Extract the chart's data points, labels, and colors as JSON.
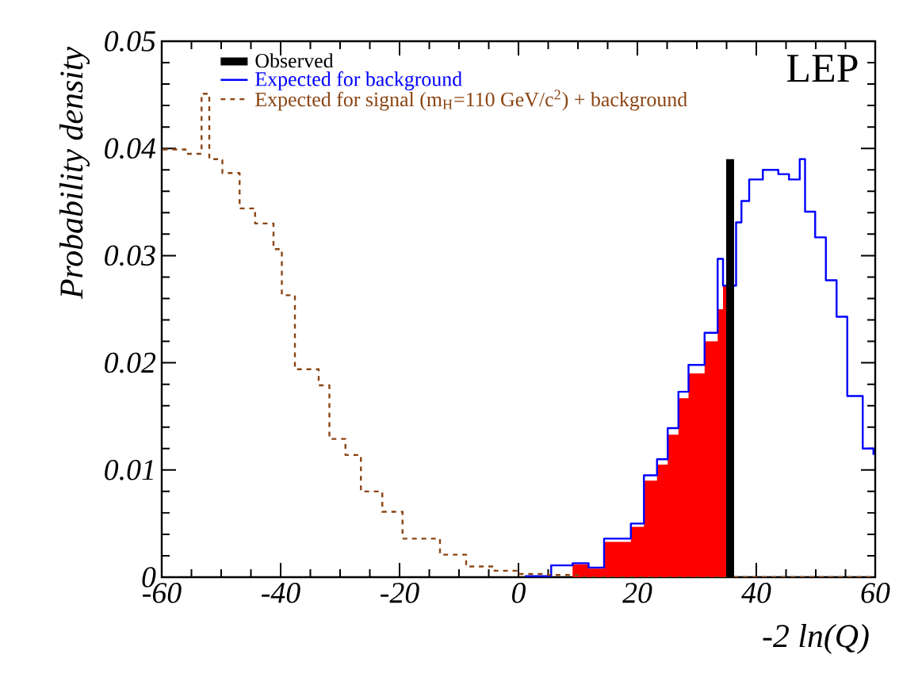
{
  "chart_data": {
    "type": "step",
    "xlabel": "-2 ln(Q)",
    "ylabel": "Probability density",
    "xlim": [
      -60,
      60
    ],
    "ylim": [
      0,
      0.05
    ],
    "xticks": [
      -60,
      -40,
      -20,
      0,
      20,
      40,
      60
    ],
    "yticks": [
      0,
      0.01,
      0.02,
      0.03,
      0.04,
      0.05
    ],
    "legend": "top left",
    "grid": false,
    "annotations": [
      "LEP"
    ],
    "series": [
      {
        "name": "Observed",
        "type": "line",
        "color": "#000000",
        "x": [
          35.6,
          35.6
        ],
        "values": [
          0,
          0.039
        ]
      },
      {
        "name": "Expected for background",
        "color": "#0000ff",
        "x": [
          1.1,
          5.5,
          9.1,
          11.8,
          14.4,
          18.9,
          21.1,
          23.3,
          25.1,
          26.9,
          28.6,
          31.3,
          33.5,
          34.4,
          36.6,
          37.5,
          38.8,
          41.1,
          43.7,
          45.5,
          47.3,
          48.2,
          49.9,
          51.7,
          53.5,
          55.3,
          57.9,
          59.7
        ],
        "values": [
          0.0001,
          0.0011,
          0.0013,
          0.0009,
          0.0036,
          0.005,
          0.0095,
          0.011,
          0.0139,
          0.0173,
          0.0198,
          0.0228,
          0.0297,
          0.0272,
          0.0331,
          0.0351,
          0.0371,
          0.038,
          0.0376,
          0.0371,
          0.039,
          0.0341,
          0.0317,
          0.0277,
          0.0243,
          0.0169,
          0.012,
          0.0114
        ]
      },
      {
        "name": "Expected for signal (m$_{H}$=110 GeV/c$^{2}$) + background",
        "line_style": "dashed",
        "color": "#8b4513",
        "x": [
          -59.8,
          -56,
          -53.3,
          -52,
          -49.8,
          -46.9,
          -44.3,
          -41.2,
          -39.8,
          -37.6,
          -33.6,
          -31.8,
          -29.1,
          -26.5,
          -22.9,
          -19.5,
          -13.2,
          -8.8,
          -4,
          0,
          5,
          10,
          60
        ],
        "values": [
          0.0399,
          0.0395,
          0.0451,
          0.039,
          0.0377,
          0.0344,
          0.033,
          0.0306,
          0.0263,
          0.0194,
          0.0179,
          0.0129,
          0.0114,
          0.008,
          0.0061,
          0.0036,
          0.0021,
          0.001,
          0.0006,
          0.0003,
          0.0002,
          0,
          0
        ]
      },
      {
        "type": "area",
        "color": "#ff0000",
        "x": [
          9.1,
          11.8,
          14.4,
          18.9,
          21.1,
          23.3,
          25.1,
          26.9,
          28.6,
          31.3,
          33.5,
          34.4,
          35.4
        ],
        "values": [
          0.0012,
          0.0008,
          0.0033,
          0.0047,
          0.009,
          0.0105,
          0.0133,
          0.0167,
          0.019,
          0.022,
          0.025,
          0.0272,
          0.028
        ]
      }
    ]
  }
}
